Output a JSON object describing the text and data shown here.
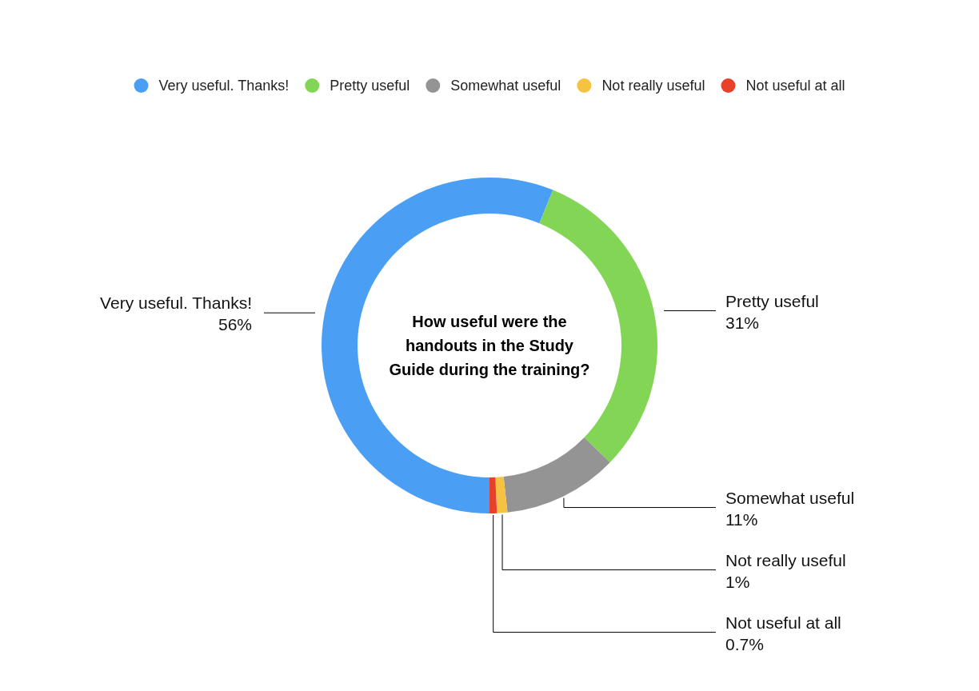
{
  "chart_data": {
    "type": "donut",
    "title": "How useful were the handouts in the Study Guide during the training?",
    "categories": [
      "Very useful. Thanks!",
      "Pretty useful",
      "Somewhat useful",
      "Not really useful",
      "Not useful at all"
    ],
    "values": [
      56,
      31,
      11,
      1,
      0.7
    ],
    "colors": [
      "#4a9ff5",
      "#83d655",
      "#949494",
      "#f5c242",
      "#e8402a"
    ],
    "value_labels": [
      "56%",
      "31%",
      "11%",
      "1%",
      "0.7%"
    ],
    "legend": "top"
  }
}
